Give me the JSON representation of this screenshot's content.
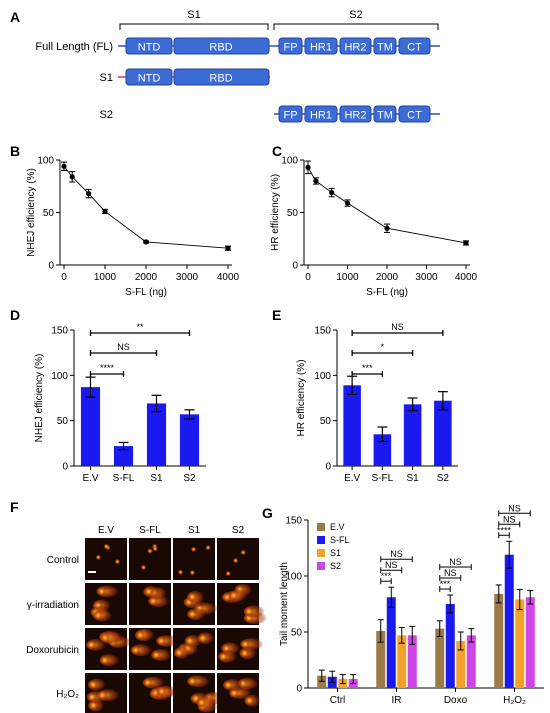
{
  "panels": {
    "A": "A",
    "B": "B",
    "C": "C",
    "D": "D",
    "E": "E",
    "F": "F",
    "G": "G"
  },
  "panel_a": {
    "s1_bracket": "S1",
    "s2_bracket": "S2",
    "rows": [
      {
        "label": "Full Length (FL)",
        "domains": [
          "NTD",
          "RBD",
          "FP",
          "HR1",
          "HR2",
          "TM",
          "CT"
        ]
      },
      {
        "label": "S1",
        "domains": [
          "NTD",
          "RBD"
        ]
      },
      {
        "label": "S2",
        "domains": [
          "FP",
          "HR1",
          "HR2",
          "TM",
          "CT"
        ]
      }
    ],
    "colors": {
      "domain": "#3d6bd6",
      "domain_border": "#22449a",
      "line": "#d6287a",
      "line_s2": "#2a4fb3"
    }
  },
  "panel_f": {
    "columns": [
      "E.V",
      "S-FL",
      "S1",
      "S2"
    ],
    "rows": [
      "Control",
      "γ-irradiation",
      "Doxorubicin",
      "H₂O₂"
    ]
  },
  "colors": {
    "bar_blue": "#1a1af0",
    "g_ev": "#9c7a48",
    "g_sfl": "#1a1af0",
    "g_s1": "#f2a12a",
    "g_s2": "#cf46e6"
  },
  "chart_data": [
    {
      "id": "B",
      "type": "line",
      "xlabel": "S-FL (ng)",
      "ylabel": "NHEJ efficiency (%)",
      "xlim": [
        0,
        4000
      ],
      "ylim": [
        0,
        100
      ],
      "xticks": [
        "0",
        "1000",
        "2000",
        "3000",
        "4000"
      ],
      "yticks": [
        "0",
        "50",
        "100"
      ],
      "x": [
        0,
        200,
        600,
        1000,
        2000,
        4000
      ],
      "y": [
        94,
        84,
        68,
        51,
        22,
        16
      ],
      "err": [
        4,
        5,
        4,
        2,
        1,
        2
      ]
    },
    {
      "id": "C",
      "type": "line",
      "xlabel": "S-FL (ng)",
      "ylabel": "HR efficiency (%)",
      "xlim": [
        0,
        4000
      ],
      "ylim": [
        0,
        100
      ],
      "xticks": [
        "0",
        "1000",
        "2000",
        "3000",
        "4000"
      ],
      "yticks": [
        "0",
        "50",
        "100"
      ],
      "x": [
        0,
        200,
        600,
        1000,
        2000,
        4000
      ],
      "y": [
        93,
        80,
        69,
        59,
        35,
        21
      ],
      "err": [
        6,
        3,
        4,
        3,
        4,
        2
      ]
    },
    {
      "id": "D",
      "type": "bar",
      "categories": [
        "E.V",
        "S-FL",
        "S1",
        "S2"
      ],
      "values": [
        87,
        22,
        69,
        57
      ],
      "err": [
        11,
        4,
        9,
        5
      ],
      "ylabel": "NHEJ efficiency (%)",
      "ylim": [
        0,
        150
      ],
      "yticks": [
        "0",
        "50",
        "100",
        "150"
      ],
      "significance": [
        {
          "from": 0,
          "to": 1,
          "label": "****"
        },
        {
          "from": 0,
          "to": 2,
          "label": "NS"
        },
        {
          "from": 0,
          "to": 3,
          "label": "**"
        }
      ]
    },
    {
      "id": "E",
      "type": "bar",
      "categories": [
        "E.V",
        "S-FL",
        "S1",
        "S2"
      ],
      "values": [
        89,
        35,
        68,
        72
      ],
      "err": [
        10,
        8,
        7,
        10
      ],
      "ylabel": "HR efficiency (%)",
      "ylim": [
        0,
        150
      ],
      "yticks": [
        "0",
        "50",
        "100",
        "150"
      ],
      "significance": [
        {
          "from": 0,
          "to": 1,
          "label": "***"
        },
        {
          "from": 0,
          "to": 2,
          "label": "*"
        },
        {
          "from": 0,
          "to": 3,
          "label": "NS"
        }
      ]
    },
    {
      "id": "G",
      "type": "bar",
      "categories": [
        "Ctrl",
        "IR",
        "Doxo",
        "H₂O₂"
      ],
      "ylabel": "Tail moment length",
      "ylim": [
        0,
        150
      ],
      "yticks": [
        "0",
        "50",
        "100",
        "150"
      ],
      "series": [
        {
          "name": "E.V",
          "values": [
            11,
            51,
            53,
            84
          ],
          "err": [
            5,
            10,
            7,
            8
          ]
        },
        {
          "name": "S-FL",
          "values": [
            10,
            81,
            75,
            119
          ],
          "err": [
            5,
            9,
            8,
            12
          ]
        },
        {
          "name": "S1",
          "values": [
            8,
            47,
            42,
            79
          ],
          "err": [
            4,
            7,
            8,
            9
          ]
        },
        {
          "name": "S2",
          "values": [
            8,
            47,
            47,
            81
          ],
          "err": [
            4,
            8,
            6,
            6
          ]
        }
      ],
      "significance": [
        {
          "group": 1,
          "from": 0,
          "to": 1,
          "label": "***"
        },
        {
          "group": 1,
          "from": 0,
          "to": 2,
          "label": "NS"
        },
        {
          "group": 1,
          "from": 0,
          "to": 3,
          "label": "NS"
        },
        {
          "group": 2,
          "from": 0,
          "to": 1,
          "label": "***"
        },
        {
          "group": 2,
          "from": 0,
          "to": 2,
          "label": "NS"
        },
        {
          "group": 2,
          "from": 0,
          "to": 3,
          "label": "NS"
        },
        {
          "group": 3,
          "from": 0,
          "to": 1,
          "label": "****"
        },
        {
          "group": 3,
          "from": 0,
          "to": 2,
          "label": "NS"
        },
        {
          "group": 3,
          "from": 0,
          "to": 3,
          "label": "NS"
        }
      ],
      "legend": "top-left"
    }
  ]
}
